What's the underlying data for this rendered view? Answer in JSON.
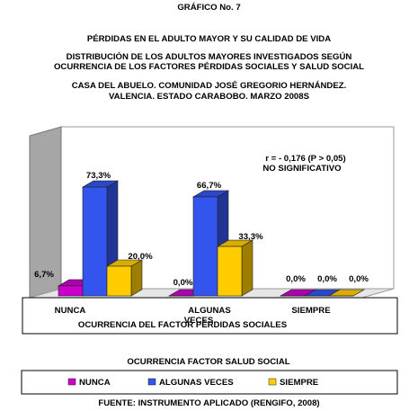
{
  "figure": {
    "number": "GRÁFICO No. 7",
    "title_lines": [
      "PÉRDIDAS EN EL ADULTO MAYOR Y SU CALIDAD DE VIDA",
      "DISTRIBUCIÓN DE LOS ADULTOS MAYORES INVESTIGADOS SEGÚN",
      "OCURRENCIA DE LOS FACTORES PÉRDIDAS SOCIALES Y SALUD SOCIAL",
      "CASA DEL ABUELO. COMUNIDAD JOSÉ GREGORIO HERNÁNDEZ.",
      "VALENCIA. ESTADO CARABOBO. MARZO 2008S"
    ],
    "source": "FUENTE: INSTRUMENTO APLICADO (RENGIFO, 2008)"
  },
  "chart_data": {
    "type": "bar",
    "categories": [
      "NUNCA",
      "ALGUNAS VECES",
      "SIEMPRE"
    ],
    "xlabel": "OCURRENCIA  DEL FACTOR PÉRDIDAS SOCIALES",
    "series": [
      {
        "name": "NUNCA",
        "color": "#cc00cc",
        "values": [
          6.7,
          0.0,
          0.0
        ],
        "labels": [
          "6,7%",
          "0,0%",
          "0,0%"
        ]
      },
      {
        "name": "ALGUNAS VECES",
        "color": "#3355ee",
        "values": [
          73.3,
          66.7,
          0.0
        ],
        "labels": [
          "73,3%",
          "66,7%",
          "0,0%"
        ]
      },
      {
        "name": "SIEMPRE",
        "color": "#ffcc00",
        "values": [
          20.0,
          33.3,
          0.0
        ],
        "labels": [
          "20,0%",
          "33,3%",
          "0,0%"
        ]
      }
    ],
    "legend_title": "OCURRENCIA  FACTOR SALUD SOCIAL",
    "legend_position": "bottom",
    "annotation": [
      "r = - 0,176 (P > 0,05)",
      "NO SIGNIFICATIVO"
    ],
    "ylim": [
      0,
      100
    ],
    "grid": false
  }
}
